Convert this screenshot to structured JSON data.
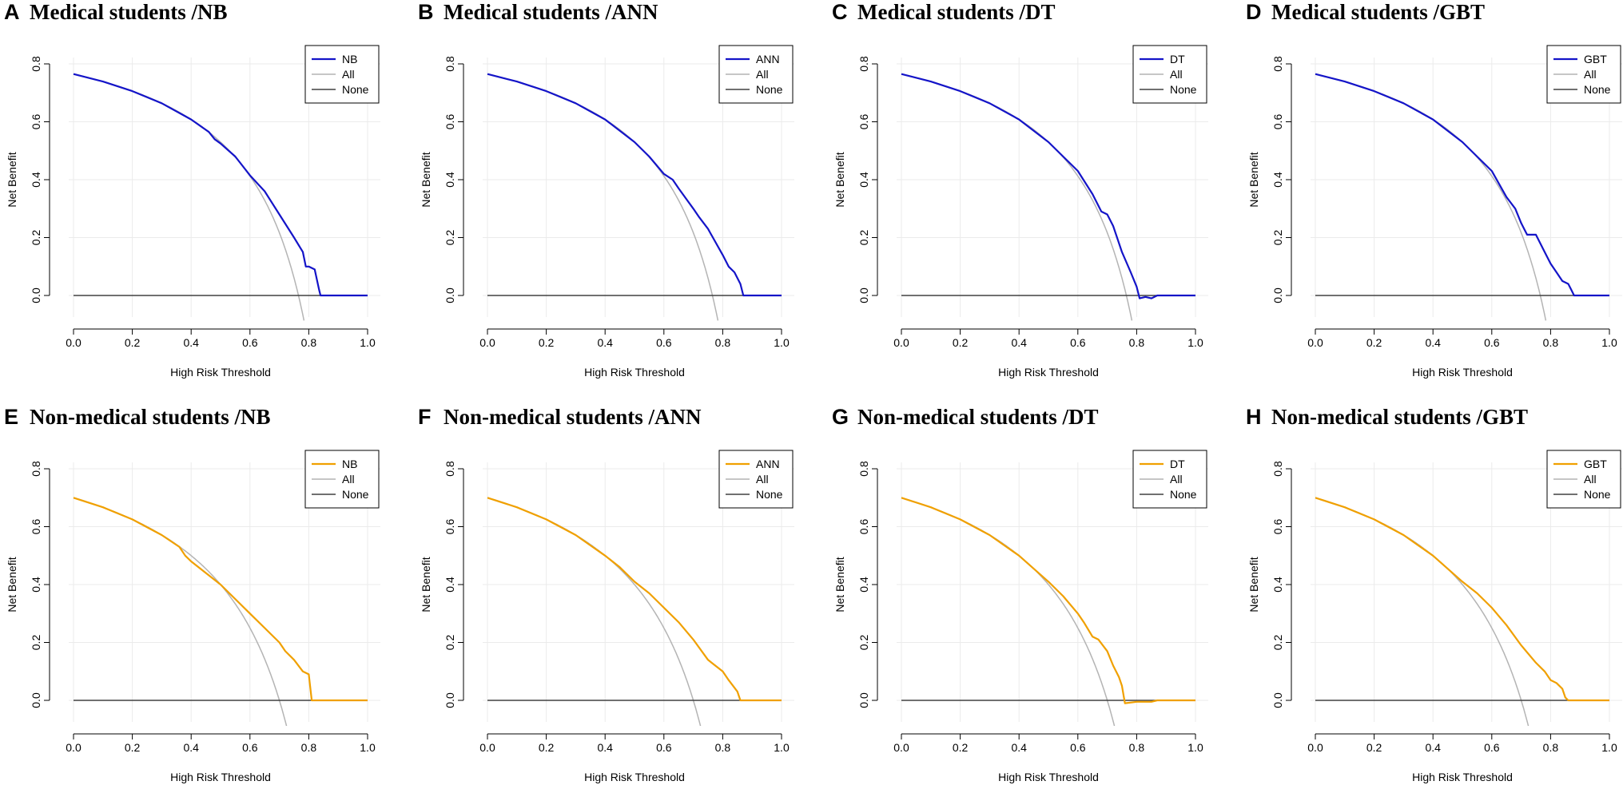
{
  "figure": {
    "colors": {
      "medical": "#1414c8",
      "nonmedical": "#f0a000",
      "all": "#b4b4b4",
      "none": "#404040",
      "grid": "#ebebeb"
    }
  },
  "chart_data": [
    {
      "type": "line",
      "letter": "A",
      "title": "Medical students /NB",
      "group": "medical",
      "xlabel": "High Risk Threshold",
      "ylabel": "Net Benefit",
      "xlim": [
        0,
        1
      ],
      "ylim": [
        -0.08,
        0.8
      ],
      "xticks": [
        "0.0",
        "0.2",
        "0.4",
        "0.6",
        "0.8",
        "1.0"
      ],
      "yticks": [
        "0.0",
        "0.2",
        "0.4",
        "0.6",
        "0.8"
      ],
      "legend": [
        "NB",
        "All",
        "None"
      ],
      "prevalence": 0.765,
      "series": [
        {
          "name": "NB",
          "x": [
            0,
            0.1,
            0.2,
            0.3,
            0.4,
            0.46,
            0.48,
            0.5,
            0.55,
            0.6,
            0.65,
            0.7,
            0.75,
            0.78,
            0.79,
            0.8,
            0.82,
            0.835,
            0.84,
            1.0
          ],
          "y": [
            0.765,
            0.739,
            0.706,
            0.664,
            0.608,
            0.565,
            0.54,
            0.525,
            0.48,
            0.415,
            0.36,
            0.28,
            0.2,
            0.15,
            0.1,
            0.1,
            0.09,
            0.02,
            0,
            0
          ]
        },
        {
          "name": "All",
          "curve": "treat-all"
        },
        {
          "name": "None",
          "x": [
            0,
            1
          ],
          "y": [
            0,
            0
          ]
        }
      ]
    },
    {
      "type": "line",
      "letter": "B",
      "title": "Medical students /ANN",
      "group": "medical",
      "xlabel": "High Risk Threshold",
      "ylabel": "Net Benefit",
      "xlim": [
        0,
        1
      ],
      "ylim": [
        -0.08,
        0.8
      ],
      "xticks": [
        "0.0",
        "0.2",
        "0.4",
        "0.6",
        "0.8",
        "1.0"
      ],
      "yticks": [
        "0.0",
        "0.2",
        "0.4",
        "0.6",
        "0.8"
      ],
      "legend": [
        "ANN",
        "All",
        "None"
      ],
      "prevalence": 0.765,
      "series": [
        {
          "name": "ANN",
          "x": [
            0,
            0.1,
            0.2,
            0.3,
            0.4,
            0.5,
            0.55,
            0.6,
            0.63,
            0.65,
            0.7,
            0.72,
            0.75,
            0.8,
            0.82,
            0.84,
            0.86,
            0.87,
            1.0
          ],
          "y": [
            0.765,
            0.739,
            0.706,
            0.664,
            0.608,
            0.53,
            0.48,
            0.42,
            0.4,
            0.37,
            0.3,
            0.27,
            0.23,
            0.14,
            0.1,
            0.08,
            0.04,
            0,
            0
          ]
        },
        {
          "name": "All",
          "curve": "treat-all"
        },
        {
          "name": "None",
          "x": [
            0,
            1
          ],
          "y": [
            0,
            0
          ]
        }
      ]
    },
    {
      "type": "line",
      "letter": "C",
      "title": "Medical students /DT",
      "group": "medical",
      "xlabel": "High Risk Threshold",
      "ylabel": "Net Benefit",
      "xlim": [
        0,
        1
      ],
      "ylim": [
        -0.08,
        0.8
      ],
      "xticks": [
        "0.0",
        "0.2",
        "0.4",
        "0.6",
        "0.8",
        "1.0"
      ],
      "yticks": [
        "0.0",
        "0.2",
        "0.4",
        "0.6",
        "0.8"
      ],
      "legend": [
        "DT",
        "All",
        "None"
      ],
      "prevalence": 0.765,
      "series": [
        {
          "name": "DT",
          "x": [
            0,
            0.1,
            0.2,
            0.3,
            0.4,
            0.5,
            0.6,
            0.65,
            0.68,
            0.7,
            0.72,
            0.75,
            0.78,
            0.8,
            0.81,
            0.83,
            0.85,
            0.87,
            1.0
          ],
          "y": [
            0.765,
            0.739,
            0.706,
            0.664,
            0.608,
            0.53,
            0.43,
            0.35,
            0.29,
            0.28,
            0.24,
            0.15,
            0.08,
            0.03,
            -0.01,
            -0.005,
            -0.01,
            0,
            0
          ]
        },
        {
          "name": "All",
          "curve": "treat-all"
        },
        {
          "name": "None",
          "x": [
            0,
            1
          ],
          "y": [
            0,
            0
          ]
        }
      ]
    },
    {
      "type": "line",
      "letter": "D",
      "title": "Medical students /GBT",
      "group": "medical",
      "xlabel": "High Risk Threshold",
      "ylabel": "Net Benefit",
      "xlim": [
        0,
        1
      ],
      "ylim": [
        -0.08,
        0.8
      ],
      "xticks": [
        "0.0",
        "0.2",
        "0.4",
        "0.6",
        "0.8",
        "1.0"
      ],
      "yticks": [
        "0.0",
        "0.2",
        "0.4",
        "0.6",
        "0.8"
      ],
      "legend": [
        "GBT",
        "All",
        "None"
      ],
      "prevalence": 0.765,
      "series": [
        {
          "name": "GBT",
          "x": [
            0,
            0.1,
            0.2,
            0.3,
            0.4,
            0.5,
            0.6,
            0.65,
            0.68,
            0.7,
            0.72,
            0.75,
            0.78,
            0.8,
            0.82,
            0.84,
            0.86,
            0.87,
            0.88,
            1.0
          ],
          "y": [
            0.765,
            0.739,
            0.706,
            0.664,
            0.608,
            0.53,
            0.43,
            0.34,
            0.3,
            0.25,
            0.21,
            0.21,
            0.15,
            0.11,
            0.08,
            0.05,
            0.04,
            0.02,
            0,
            0
          ]
        },
        {
          "name": "All",
          "curve": "treat-all"
        },
        {
          "name": "None",
          "x": [
            0,
            1
          ],
          "y": [
            0,
            0
          ]
        }
      ]
    },
    {
      "type": "line",
      "letter": "E",
      "title": "Non-medical students /NB",
      "group": "nonmedical",
      "xlabel": "High Risk Threshold",
      "ylabel": "Net Benefit",
      "xlim": [
        0,
        1
      ],
      "ylim": [
        -0.08,
        0.8
      ],
      "xticks": [
        "0.0",
        "0.2",
        "0.4",
        "0.6",
        "0.8",
        "1.0"
      ],
      "yticks": [
        "0.0",
        "0.2",
        "0.4",
        "0.6",
        "0.8"
      ],
      "legend": [
        "NB",
        "All",
        "None"
      ],
      "prevalence": 0.7,
      "series": [
        {
          "name": "NB",
          "x": [
            0,
            0.1,
            0.2,
            0.3,
            0.36,
            0.38,
            0.4,
            0.45,
            0.5,
            0.55,
            0.6,
            0.65,
            0.7,
            0.72,
            0.75,
            0.78,
            0.8,
            0.81,
            1.0
          ],
          "y": [
            0.7,
            0.667,
            0.625,
            0.571,
            0.53,
            0.5,
            0.48,
            0.44,
            0.4,
            0.35,
            0.3,
            0.25,
            0.2,
            0.17,
            0.14,
            0.1,
            0.09,
            0,
            0
          ]
        },
        {
          "name": "All",
          "curve": "treat-all"
        },
        {
          "name": "None",
          "x": [
            0,
            1
          ],
          "y": [
            0,
            0
          ]
        }
      ]
    },
    {
      "type": "line",
      "letter": "F",
      "title": "Non-medical students /ANN",
      "group": "nonmedical",
      "xlabel": "High Risk Threshold",
      "ylabel": "Net Benefit",
      "xlim": [
        0,
        1
      ],
      "ylim": [
        -0.08,
        0.8
      ],
      "xticks": [
        "0.0",
        "0.2",
        "0.4",
        "0.6",
        "0.8",
        "1.0"
      ],
      "yticks": [
        "0.0",
        "0.2",
        "0.4",
        "0.6",
        "0.8"
      ],
      "legend": [
        "ANN",
        "All",
        "None"
      ],
      "prevalence": 0.7,
      "series": [
        {
          "name": "ANN",
          "x": [
            0,
            0.1,
            0.2,
            0.3,
            0.4,
            0.45,
            0.5,
            0.55,
            0.6,
            0.65,
            0.7,
            0.75,
            0.8,
            0.82,
            0.85,
            0.86,
            1.0
          ],
          "y": [
            0.7,
            0.667,
            0.625,
            0.571,
            0.5,
            0.46,
            0.41,
            0.37,
            0.32,
            0.27,
            0.21,
            0.14,
            0.1,
            0.07,
            0.03,
            0,
            0
          ]
        },
        {
          "name": "All",
          "curve": "treat-all"
        },
        {
          "name": "None",
          "x": [
            0,
            1
          ],
          "y": [
            0,
            0
          ]
        }
      ]
    },
    {
      "type": "line",
      "letter": "G",
      "title": "Non-medical students /DT",
      "group": "nonmedical",
      "xlabel": "High Risk Threshold",
      "ylabel": "Net Benefit",
      "xlim": [
        0,
        1
      ],
      "ylim": [
        -0.08,
        0.8
      ],
      "xticks": [
        "0.0",
        "0.2",
        "0.4",
        "0.6",
        "0.8",
        "1.0"
      ],
      "yticks": [
        "0.0",
        "0.2",
        "0.4",
        "0.6",
        "0.8"
      ],
      "legend": [
        "DT",
        "All",
        "None"
      ],
      "prevalence": 0.7,
      "series": [
        {
          "name": "DT",
          "x": [
            0,
            0.1,
            0.2,
            0.3,
            0.4,
            0.5,
            0.55,
            0.6,
            0.62,
            0.65,
            0.67,
            0.7,
            0.72,
            0.74,
            0.75,
            0.76,
            0.8,
            0.85,
            0.87,
            1.0
          ],
          "y": [
            0.7,
            0.667,
            0.625,
            0.571,
            0.5,
            0.41,
            0.36,
            0.3,
            0.27,
            0.22,
            0.21,
            0.17,
            0.12,
            0.08,
            0.05,
            -0.01,
            -0.005,
            -0.005,
            0,
            0
          ]
        },
        {
          "name": "All",
          "curve": "treat-all"
        },
        {
          "name": "None",
          "x": [
            0,
            1
          ],
          "y": [
            0,
            0
          ]
        }
      ]
    },
    {
      "type": "line",
      "letter": "H",
      "title": "Non-medical students /GBT",
      "group": "nonmedical",
      "xlabel": "High Risk Threshold",
      "ylabel": "Net Benefit",
      "xlim": [
        0,
        1
      ],
      "ylim": [
        -0.08,
        0.8
      ],
      "xticks": [
        "0.0",
        "0.2",
        "0.4",
        "0.6",
        "0.8",
        "1.0"
      ],
      "yticks": [
        "0.0",
        "0.2",
        "0.4",
        "0.6",
        "0.8"
      ],
      "legend": [
        "GBT",
        "All",
        "None"
      ],
      "prevalence": 0.7,
      "series": [
        {
          "name": "GBT",
          "x": [
            0,
            0.1,
            0.2,
            0.3,
            0.4,
            0.5,
            0.55,
            0.6,
            0.65,
            0.7,
            0.75,
            0.78,
            0.8,
            0.82,
            0.84,
            0.85,
            0.86,
            1.0
          ],
          "y": [
            0.7,
            0.667,
            0.625,
            0.571,
            0.5,
            0.41,
            0.37,
            0.32,
            0.26,
            0.19,
            0.13,
            0.1,
            0.07,
            0.06,
            0.04,
            0.01,
            0,
            0
          ]
        },
        {
          "name": "All",
          "curve": "treat-all"
        },
        {
          "name": "None",
          "x": [
            0,
            1
          ],
          "y": [
            0,
            0
          ]
        }
      ]
    }
  ]
}
